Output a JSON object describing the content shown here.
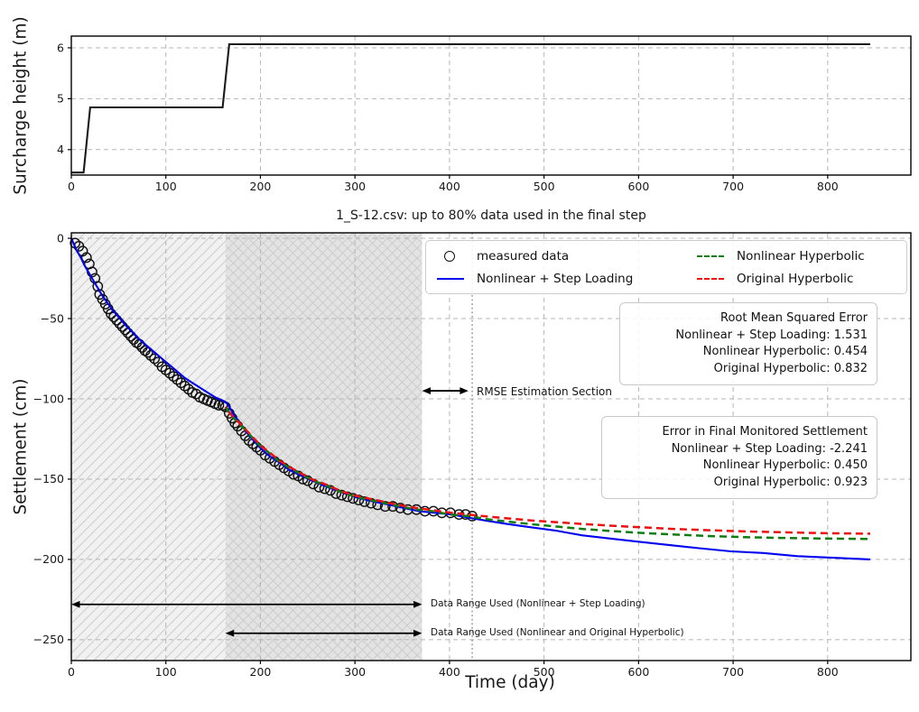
{
  "figure": {
    "background": "#ffffff",
    "colors": {
      "measured": "#111111",
      "step_loading": "#0202ee",
      "nonlinear_hyperbolic": "#0e7d0e",
      "original_hyperbolic": "#ee0f0f",
      "annotation_text": "#ff0000",
      "grid": "#b5b5b5",
      "spine": "#000000",
      "surcharge_line": "#1a1a1a",
      "region_light_fill": "#f1f1f1",
      "region_dark_fill": "#e3e3e3",
      "hatch": "#cccccc",
      "vline": "#8a8a8a"
    }
  },
  "chart_data": [
    {
      "id": "surcharge",
      "type": "line",
      "title": "",
      "xlabel": "",
      "ylabel": "Surcharge height (m)",
      "xlim": [
        0,
        888
      ],
      "ylim": [
        3.5,
        6.23
      ],
      "xticks": [
        0,
        100,
        200,
        300,
        400,
        500,
        600,
        700,
        800
      ],
      "yticks": [
        4,
        5,
        6
      ],
      "grid": true,
      "series": [
        {
          "name": "surcharge height",
          "style": "solid",
          "color_key": "surcharge_line",
          "points": [
            [
              0,
              3.55
            ],
            [
              13,
              3.55
            ],
            [
              20,
              4.83
            ],
            [
              160,
              4.83
            ],
            [
              167,
              6.07
            ],
            [
              845,
              6.07
            ]
          ]
        }
      ]
    },
    {
      "id": "settlement",
      "type": "scatter+line",
      "title": "1_S-12.csv: up to 80% data used in the final step",
      "xlabel": "Time (day)",
      "ylabel": "Settlement (cm)",
      "xlim": [
        0,
        888
      ],
      "ylim": [
        -263,
        3.4
      ],
      "xticks": [
        0,
        100,
        200,
        300,
        400,
        500,
        600,
        700,
        800
      ],
      "yticks": [
        0,
        -50,
        -100,
        -150,
        -200,
        -250
      ],
      "grid": true,
      "regions": [
        {
          "name": "step-loading-data-range",
          "x0": 0,
          "x1": 163,
          "hatch": "/",
          "fill_key": "region_light_fill"
        },
        {
          "name": "hyperbolic-data-range",
          "x0": 163,
          "x1": 371,
          "hatch": "x",
          "fill_key": "region_dark_fill"
        }
      ],
      "vline": {
        "x": 424,
        "style": "dotted",
        "color_key": "vline"
      },
      "scatter": {
        "name": "measured data",
        "color_key": "measured",
        "points": [
          [
            4,
            -3
          ],
          [
            8,
            -5
          ],
          [
            12,
            -8
          ],
          [
            16,
            -12
          ],
          [
            19,
            -16
          ],
          [
            22,
            -21
          ],
          [
            25,
            -25
          ],
          [
            28,
            -30
          ],
          [
            30,
            -35
          ],
          [
            33,
            -38
          ],
          [
            36,
            -41
          ],
          [
            39,
            -44
          ],
          [
            42,
            -47
          ],
          [
            45,
            -49
          ],
          [
            48,
            -51
          ],
          [
            51,
            -53
          ],
          [
            54,
            -55
          ],
          [
            57,
            -57
          ],
          [
            60,
            -59
          ],
          [
            63,
            -61
          ],
          [
            66,
            -63
          ],
          [
            69,
            -65
          ],
          [
            72,
            -66
          ],
          [
            75,
            -68
          ],
          [
            78,
            -70
          ],
          [
            81,
            -71
          ],
          [
            84,
            -73
          ],
          [
            88,
            -75
          ],
          [
            92,
            -77
          ],
          [
            96,
            -80
          ],
          [
            100,
            -82
          ],
          [
            104,
            -84
          ],
          [
            108,
            -86
          ],
          [
            112,
            -88
          ],
          [
            116,
            -90
          ],
          [
            120,
            -92
          ],
          [
            124,
            -94
          ],
          [
            128,
            -96
          ],
          [
            132,
            -97
          ],
          [
            136,
            -99
          ],
          [
            140,
            -100
          ],
          [
            144,
            -101
          ],
          [
            148,
            -102
          ],
          [
            152,
            -103
          ],
          [
            156,
            -104
          ],
          [
            160,
            -104
          ],
          [
            163,
            -105
          ],
          [
            167,
            -109
          ],
          [
            170,
            -112
          ],
          [
            173,
            -115
          ],
          [
            176,
            -117
          ],
          [
            180,
            -120
          ],
          [
            184,
            -123
          ],
          [
            188,
            -126
          ],
          [
            192,
            -128
          ],
          [
            196,
            -130
          ],
          [
            200,
            -132
          ],
          [
            205,
            -135
          ],
          [
            210,
            -137
          ],
          [
            215,
            -139
          ],
          [
            220,
            -141
          ],
          [
            225,
            -143
          ],
          [
            230,
            -145
          ],
          [
            235,
            -147
          ],
          [
            240,
            -148
          ],
          [
            245,
            -150
          ],
          [
            250,
            -151
          ],
          [
            256,
            -153
          ],
          [
            262,
            -155
          ],
          [
            268,
            -156
          ],
          [
            274,
            -157
          ],
          [
            280,
            -159
          ],
          [
            286,
            -160
          ],
          [
            292,
            -161
          ],
          [
            298,
            -162
          ],
          [
            304,
            -163
          ],
          [
            310,
            -164
          ],
          [
            317,
            -165
          ],
          [
            324,
            -166
          ],
          [
            332,
            -167
          ],
          [
            340,
            -167
          ],
          [
            348,
            -168
          ],
          [
            356,
            -169
          ],
          [
            365,
            -169
          ],
          [
            374,
            -170
          ],
          [
            383,
            -170
          ],
          [
            392,
            -171
          ],
          [
            401,
            -171
          ],
          [
            410,
            -172
          ],
          [
            417,
            -172
          ],
          [
            424,
            -173
          ]
        ]
      },
      "series": [
        {
          "name": "Nonlinear + Step Loading",
          "style": "solid",
          "color_key": "step_loading",
          "points": [
            [
              0,
              0
            ],
            [
              3,
              -4
            ],
            [
              6,
              -8
            ],
            [
              10,
              -12
            ],
            [
              14,
              -17
            ],
            [
              18,
              -21
            ],
            [
              22,
              -25
            ],
            [
              27,
              -30
            ],
            [
              32,
              -35
            ],
            [
              38,
              -40
            ],
            [
              44,
              -45
            ],
            [
              50,
              -49
            ],
            [
              57,
              -54
            ],
            [
              64,
              -58
            ],
            [
              72,
              -63
            ],
            [
              80,
              -67
            ],
            [
              88,
              -71
            ],
            [
              96,
              -75
            ],
            [
              104,
              -79
            ],
            [
              112,
              -83
            ],
            [
              120,
              -87
            ],
            [
              128,
              -90
            ],
            [
              136,
              -93
            ],
            [
              144,
              -96
            ],
            [
              152,
              -99
            ],
            [
              160,
              -101
            ],
            [
              165,
              -103
            ],
            [
              169,
              -107
            ],
            [
              173,
              -111
            ],
            [
              177,
              -114
            ],
            [
              182,
              -118
            ],
            [
              187,
              -122
            ],
            [
              193,
              -126
            ],
            [
              199,
              -130
            ],
            [
              206,
              -134
            ],
            [
              213,
              -137
            ],
            [
              221,
              -140
            ],
            [
              230,
              -144
            ],
            [
              240,
              -147
            ],
            [
              251,
              -150
            ],
            [
              263,
              -153
            ],
            [
              276,
              -156
            ],
            [
              290,
              -159
            ],
            [
              305,
              -162
            ],
            [
              320,
              -164
            ],
            [
              336,
              -166
            ],
            [
              352,
              -168
            ],
            [
              368,
              -170
            ],
            [
              385,
              -171
            ],
            [
              402,
              -172
            ],
            [
              420,
              -174
            ],
            [
              440,
              -176
            ],
            [
              462,
              -178
            ],
            [
              486,
              -180
            ],
            [
              512,
              -182
            ],
            [
              540,
              -185
            ],
            [
              570,
              -187
            ],
            [
              600,
              -189
            ],
            [
              632,
              -191
            ],
            [
              664,
              -193
            ],
            [
              698,
              -195
            ],
            [
              732,
              -196
            ],
            [
              768,
              -198
            ],
            [
              806,
              -199
            ],
            [
              845,
              -200
            ]
          ]
        },
        {
          "name": "Nonlinear Hyperbolic",
          "style": "dashed",
          "color_key": "nonlinear_hyperbolic",
          "points": [
            [
              163,
              -105
            ],
            [
              170,
              -111
            ],
            [
              177,
              -115
            ],
            [
              185,
              -120
            ],
            [
              193,
              -125
            ],
            [
              201,
              -130
            ],
            [
              210,
              -134
            ],
            [
              220,
              -139
            ],
            [
              231,
              -143
            ],
            [
              243,
              -147
            ],
            [
              256,
              -151
            ],
            [
              270,
              -154
            ],
            [
              285,
              -158
            ],
            [
              300,
              -161
            ],
            [
              316,
              -163
            ],
            [
              332,
              -165
            ],
            [
              348,
              -167
            ],
            [
              365,
              -169
            ],
            [
              382,
              -170
            ],
            [
              400,
              -172
            ],
            [
              419,
              -173
            ],
            [
              440,
              -175
            ],
            [
              462,
              -176.5
            ],
            [
              486,
              -178
            ],
            [
              512,
              -179.5
            ],
            [
              540,
              -181
            ],
            [
              570,
              -182.3
            ],
            [
              602,
              -183.5
            ],
            [
              636,
              -184.5
            ],
            [
              672,
              -185.4
            ],
            [
              710,
              -186.1
            ],
            [
              750,
              -186.6
            ],
            [
              800,
              -187
            ],
            [
              845,
              -187.3
            ]
          ]
        },
        {
          "name": "Original Hyperbolic",
          "style": "dashed",
          "color_key": "original_hyperbolic",
          "points": [
            [
              163,
              -105
            ],
            [
              170,
              -110.5
            ],
            [
              177,
              -114.5
            ],
            [
              185,
              -119.5
            ],
            [
              193,
              -124.5
            ],
            [
              201,
              -129.5
            ],
            [
              210,
              -133.5
            ],
            [
              220,
              -138.5
            ],
            [
              231,
              -142.5
            ],
            [
              243,
              -146.5
            ],
            [
              256,
              -150.5
            ],
            [
              270,
              -153.5
            ],
            [
              285,
              -157.5
            ],
            [
              300,
              -160.3
            ],
            [
              316,
              -162.3
            ],
            [
              332,
              -164.3
            ],
            [
              348,
              -166.3
            ],
            [
              365,
              -168
            ],
            [
              382,
              -169.3
            ],
            [
              400,
              -170.8
            ],
            [
              419,
              -172
            ],
            [
              440,
              -173.3
            ],
            [
              462,
              -174.5
            ],
            [
              486,
              -175.7
            ],
            [
              512,
              -176.8
            ],
            [
              540,
              -177.9
            ],
            [
              570,
              -179
            ],
            [
              602,
              -180
            ],
            [
              636,
              -181
            ],
            [
              672,
              -181.8
            ],
            [
              710,
              -182.5
            ],
            [
              750,
              -183.1
            ],
            [
              800,
              -183.7
            ],
            [
              845,
              -184
            ]
          ]
        }
      ],
      "legend": [
        {
          "label": "measured data",
          "marker": "circle",
          "color_key": "measured"
        },
        {
          "label": "Nonlinear + Step Loading",
          "marker": "line",
          "color_key": "step_loading"
        },
        {
          "label": "Nonlinear Hyperbolic",
          "marker": "dashed",
          "color_key": "nonlinear_hyperbolic"
        },
        {
          "label": "Original Hyperbolic",
          "marker": "dashed",
          "color_key": "original_hyperbolic"
        }
      ],
      "rmse_box": [
        "Root Mean Squared Error",
        "Nonlinear + Step Loading: 1.531",
        "Nonlinear Hyperbolic: 0.454",
        "Original Hyperbolic: 0.832"
      ],
      "error_box": [
        "Error in Final Monitored Settlement",
        "Nonlinear + Step Loading: -2.241",
        "Nonlinear Hyperbolic: 0.450",
        "Original Hyperbolic: 0.923"
      ],
      "annotations": [
        {
          "name": "rmse-estimation-section",
          "label": "RMSE Estimation Section",
          "arrow": {
            "x1": 371,
            "x2": 420,
            "y": -95
          }
        },
        {
          "name": "data-range-step-loading",
          "label": "Data Range Used (Nonlinear + Step Loading)",
          "arrow": {
            "x1": 0,
            "x2": 371,
            "y": -228
          }
        },
        {
          "name": "data-range-hyperbolic",
          "label": "Data Range Used (Nonlinear and Original Hyperbolic)",
          "arrow": {
            "x1": 163,
            "x2": 371,
            "y": -246
          }
        }
      ]
    }
  ]
}
